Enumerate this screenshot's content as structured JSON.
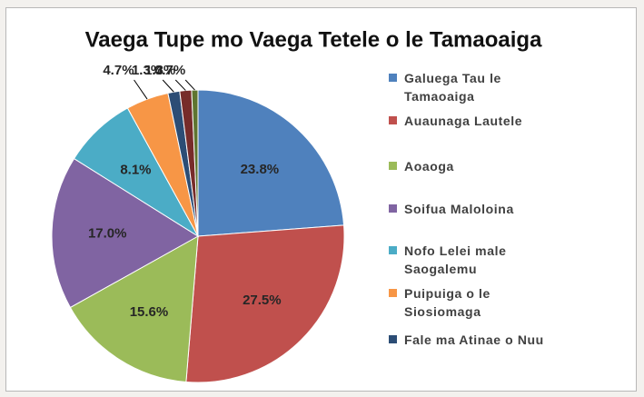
{
  "chart_data": {
    "type": "pie",
    "title": "Vaega Tupe mo Vaega Tetele o le Tamaoaiga",
    "categories": [
      "Galuega Tau le Tamaoaiga",
      "Auaunaga Lautele",
      "Aoaoga",
      "Soifua Maloloina",
      "Nofo Lelei male Saogalemu",
      "Puipuiga o le Siosiomaga",
      "Fale ma Atinae o Nuu",
      null,
      null
    ],
    "values": [
      23.8,
      27.5,
      15.6,
      17.0,
      8.1,
      4.7,
      1.3,
      1.3,
      0.7
    ],
    "value_labels": [
      "23.8%",
      "27.5%",
      "15.6%",
      "17.0%",
      "8.1%",
      "4.7%",
      "1.3%",
      "1.3%",
      "0.7%"
    ],
    "colors": [
      "#4f81bd",
      "#c0504d",
      "#9bbb59",
      "#8064a2",
      "#4bacc6",
      "#f79646",
      "#2c4d75",
      "#772c2a",
      "#5f7530"
    ],
    "legend": "right"
  }
}
